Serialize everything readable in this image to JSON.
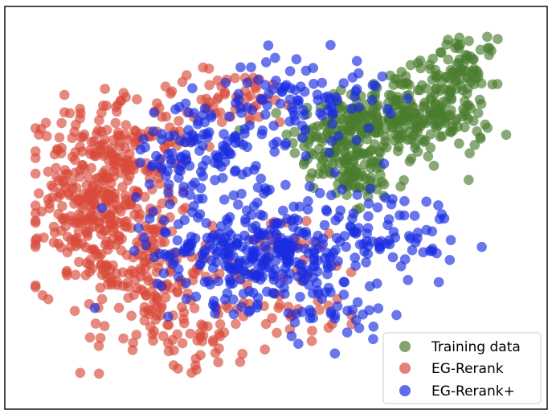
{
  "chart_data": {
    "type": "scatter",
    "title": "",
    "xlabel": "",
    "ylabel": "",
    "xlim": [
      0,
      100
    ],
    "ylim": [
      0,
      100
    ],
    "grid": false,
    "axes_visible": false,
    "legend_position": "bottom-right",
    "series": [
      {
        "name": "Training data",
        "color": "#4a7d2e",
        "clusters": [
          {
            "cx": 62,
            "cy": 68,
            "sx": 5,
            "sy": 7,
            "n": 150
          },
          {
            "cx": 73,
            "cy": 75,
            "sx": 5,
            "sy": 6,
            "n": 170
          },
          {
            "cx": 84,
            "cy": 78,
            "sx": 4,
            "sy": 7,
            "n": 110
          },
          {
            "cx": 87,
            "cy": 90,
            "sx": 3,
            "sy": 3,
            "n": 40
          },
          {
            "cx": 67,
            "cy": 57,
            "sx": 4,
            "sy": 4,
            "n": 40
          }
        ]
      },
      {
        "name": "EG-Rerank",
        "color": "#d94a3a",
        "clusters": [
          {
            "cx": 13,
            "cy": 52,
            "sx": 6,
            "sy": 12,
            "n": 330
          },
          {
            "cx": 24,
            "cy": 34,
            "sx": 5,
            "sy": 10,
            "n": 120
          },
          {
            "cx": 22,
            "cy": 68,
            "sx": 6,
            "sy": 7,
            "n": 60
          },
          {
            "cx": 40,
            "cy": 80,
            "sx": 9,
            "sy": 4,
            "n": 55
          },
          {
            "cx": 48,
            "cy": 30,
            "sx": 10,
            "sy": 10,
            "n": 85
          },
          {
            "cx": 30,
            "cy": 15,
            "sx": 8,
            "sy": 4,
            "n": 40
          }
        ]
      },
      {
        "name": "EG-Rerank+",
        "color": "#1a2de0",
        "clusters": [
          {
            "cx": 45,
            "cy": 38,
            "sx": 10,
            "sy": 7,
            "n": 300
          },
          {
            "cx": 35,
            "cy": 65,
            "sx": 7,
            "sy": 8,
            "n": 130
          },
          {
            "cx": 55,
            "cy": 80,
            "sx": 8,
            "sy": 6,
            "n": 90
          },
          {
            "cx": 70,
            "cy": 45,
            "sx": 8,
            "sy": 6,
            "n": 80
          },
          {
            "cx": 60,
            "cy": 25,
            "sx": 6,
            "sy": 6,
            "n": 40
          }
        ]
      }
    ]
  },
  "legend": {
    "items": [
      {
        "label": "Training data",
        "color": "#4a7d2e"
      },
      {
        "label": "EG-Rerank",
        "color": "#d94a3a"
      },
      {
        "label": "EG-Rerank+",
        "color": "#1a2de0"
      }
    ]
  }
}
